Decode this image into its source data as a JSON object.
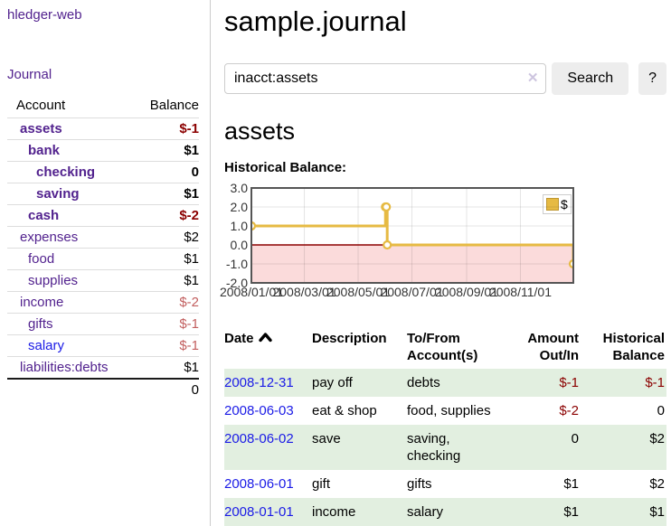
{
  "sidebar": {
    "app_title": "hledger-web",
    "journal_link": "Journal",
    "accounts_header": {
      "account": "Account",
      "balance": "Balance"
    },
    "accounts": [
      {
        "name": "assets",
        "level": 1,
        "bold": true,
        "blue": false,
        "balance": "$-1",
        "balance_class": "neg-strong"
      },
      {
        "name": "bank",
        "level": 2,
        "bold": true,
        "blue": false,
        "balance": "$1",
        "balance_class": ""
      },
      {
        "name": "checking",
        "level": 3,
        "bold": true,
        "blue": false,
        "balance": "0",
        "balance_class": ""
      },
      {
        "name": "saving",
        "level": 3,
        "bold": true,
        "blue": false,
        "balance": "$1",
        "balance_class": ""
      },
      {
        "name": "cash",
        "level": 2,
        "bold": true,
        "blue": false,
        "balance": "$-2",
        "balance_class": "neg-strong"
      },
      {
        "name": "expenses",
        "level": 1,
        "bold": false,
        "blue": false,
        "balance": "$2",
        "balance_class": ""
      },
      {
        "name": "food",
        "level": 2,
        "bold": false,
        "blue": false,
        "balance": "$1",
        "balance_class": ""
      },
      {
        "name": "supplies",
        "level": 2,
        "bold": false,
        "blue": false,
        "balance": "$1",
        "balance_class": ""
      },
      {
        "name": "income",
        "level": 1,
        "bold": false,
        "blue": false,
        "balance": "$-2",
        "balance_class": "neg-soft"
      },
      {
        "name": "gifts",
        "level": 2,
        "bold": false,
        "blue": false,
        "balance": "$-1",
        "balance_class": "neg-soft"
      },
      {
        "name": "salary",
        "level": 2,
        "bold": false,
        "blue": true,
        "balance": "$-1",
        "balance_class": "neg-soft"
      },
      {
        "name": "liabilities:debts",
        "level": 1,
        "bold": false,
        "blue": false,
        "balance": "$1",
        "balance_class": ""
      }
    ],
    "total": "0"
  },
  "main": {
    "title": "sample.journal",
    "search": {
      "value": "inacct:assets",
      "clear_icon": "✕",
      "button_label": "Search",
      "help_label": "?"
    },
    "account_heading": "assets"
  },
  "chart_data": {
    "type": "line",
    "title": "Historical Balance:",
    "legend": [
      {
        "name": "$",
        "color": "#E6BA43"
      }
    ],
    "ylim": [
      -2,
      3
    ],
    "yticks": [
      "3.0",
      "2.0",
      "1.0",
      "0.0",
      "-1.0",
      "-2.0"
    ],
    "xticks": [
      "2008/01/01",
      "2008/03/01",
      "2008/05/01",
      "2008/07/01",
      "2008/09/01",
      "2008/11/01"
    ],
    "x_domain": [
      "2008-01-01",
      "2008-12-31"
    ],
    "series": [
      {
        "name": "$",
        "color": "#E6BA43",
        "step": true,
        "points": [
          {
            "date": "2008-01-01",
            "value": 1
          },
          {
            "date": "2008-06-01",
            "value": 2
          },
          {
            "date": "2008-06-02",
            "value": 2
          },
          {
            "date": "2008-06-03",
            "value": 0
          },
          {
            "date": "2008-12-31",
            "value": -1
          }
        ]
      }
    ],
    "negative_region_color": "#FBDBDB",
    "zero_line_color": "#8B0000",
    "grid": true,
    "legend_position": "top-right"
  },
  "transactions": {
    "columns": [
      "Date",
      "Description",
      "To/From Account(s)",
      "Amount Out/In",
      "Historical Balance"
    ],
    "sort_column": "Date",
    "sort_direction": "asc",
    "rows": [
      {
        "date": "2008-12-31",
        "description": "pay off",
        "accounts": "debts",
        "amount": "$-1",
        "amount_neg": true,
        "balance": "$-1",
        "balance_neg": true
      },
      {
        "date": "2008-06-03",
        "description": "eat & shop",
        "accounts": "food, supplies",
        "amount": "$-2",
        "amount_neg": true,
        "balance": "0",
        "balance_neg": false
      },
      {
        "date": "2008-06-02",
        "description": "save",
        "accounts": "saving, checking",
        "amount": "0",
        "amount_neg": false,
        "balance": "$2",
        "balance_neg": false
      },
      {
        "date": "2008-06-01",
        "description": "gift",
        "accounts": "gifts",
        "amount": "$1",
        "amount_neg": false,
        "balance": "$2",
        "balance_neg": false
      },
      {
        "date": "2008-01-01",
        "description": "income",
        "accounts": "salary",
        "amount": "$1",
        "amount_neg": false,
        "balance": "$1",
        "balance_neg": false
      }
    ]
  }
}
